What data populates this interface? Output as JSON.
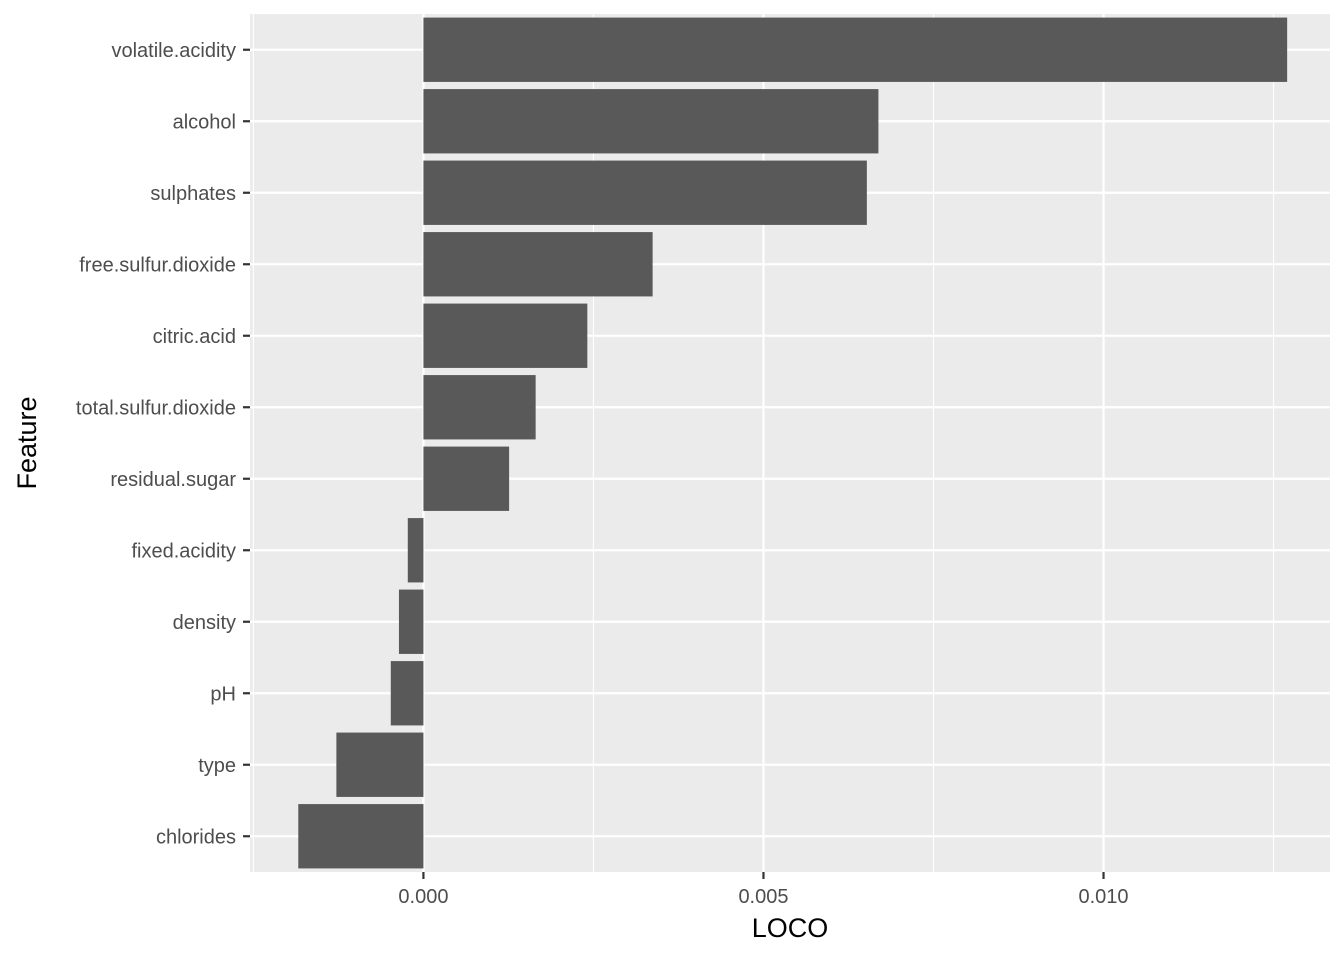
{
  "chart_data": {
    "type": "bar",
    "orientation": "horizontal",
    "xlabel": "LOCO",
    "ylabel": "Feature",
    "xlim": [
      -0.00255,
      0.01333
    ],
    "x_ticks": [
      {
        "value": 0.0,
        "label": "0.000"
      },
      {
        "value": 0.005,
        "label": "0.005"
      },
      {
        "value": 0.01,
        "label": "0.010"
      }
    ],
    "x_minor_ticks": [
      -0.0025,
      0.0025,
      0.0075,
      0.0125
    ],
    "categories": [
      "volatile.acidity",
      "alcohol",
      "sulphates",
      "free.sulfur.dioxide",
      "citric.acid",
      "total.sulfur.dioxide",
      "residual.sugar",
      "fixed.acidity",
      "density",
      "pH",
      "type",
      "chlorides"
    ],
    "values": [
      0.0127,
      0.00669,
      0.00652,
      0.00337,
      0.00241,
      0.00165,
      0.00126,
      -0.00023,
      -0.00036,
      -0.00048,
      -0.00128,
      -0.00184
    ],
    "grid": true,
    "legend": "none",
    "colors": {
      "bar": "#595959",
      "panel": "#ebebeb",
      "grid": "#ffffff"
    }
  }
}
